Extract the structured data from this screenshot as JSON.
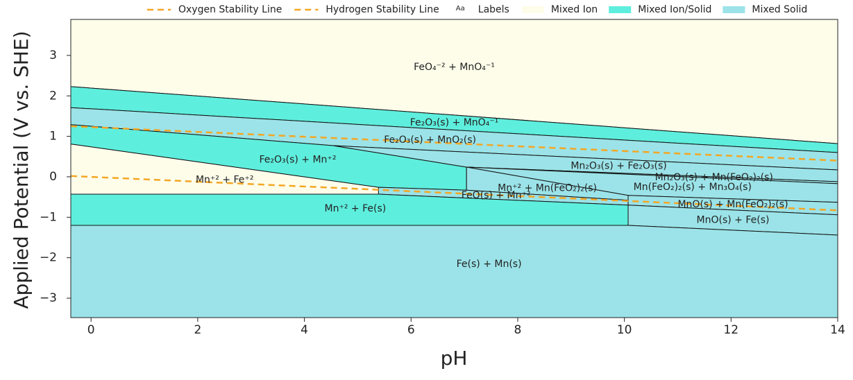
{
  "chart_data": {
    "type": "pourbaix",
    "xlabel": "pH",
    "ylabel": "Applied Potential (V vs. SHE)",
    "xlim": [
      -0.38,
      14
    ],
    "ylim": [
      -3.48,
      3.89
    ],
    "xticks": [
      0,
      2,
      4,
      6,
      8,
      10,
      12,
      14
    ],
    "yticks": [
      {
        "value": -3,
        "label": "−3"
      },
      {
        "value": -2,
        "label": "−2"
      },
      {
        "value": -1,
        "label": "−1"
      },
      0,
      1,
      2,
      3
    ],
    "lines": [
      {
        "name": "Oxygen Stability Line",
        "color": "#f5a623",
        "x": [
          -0.38,
          14
        ],
        "y": [
          1.25,
          0.4
        ]
      },
      {
        "name": "Hydrogen Stability Line",
        "color": "#f5a623",
        "x": [
          -0.38,
          14
        ],
        "y": [
          0.02,
          -0.83
        ]
      }
    ],
    "label_key": {
      "symbol": "Aa",
      "name": "Labels"
    },
    "region_kinds": [
      {
        "name": "Mixed Ion",
        "color": "#fdfdea"
      },
      {
        "name": "Mixed Ion/Solid",
        "color": "#5eeedd"
      },
      {
        "name": "Mixed Solid",
        "color": "#9be3e8"
      }
    ],
    "regions": [
      {
        "label": "FeO₄⁻² + MnO₄⁻¹",
        "kind": 0,
        "x": [
          -0.38,
          14,
          14,
          -0.38
        ],
        "y": [
          3.89,
          3.89,
          0.82,
          2.23
        ]
      },
      {
        "label": "Fe₂O₃(s) + MnO₄⁻¹",
        "kind": 1,
        "x": [
          -0.38,
          14,
          14,
          -0.38
        ],
        "y": [
          2.23,
          0.82,
          0.6,
          1.71
        ]
      },
      {
        "label": "Fe₂O₃(s) + MnO₂(s)",
        "kind": 2,
        "x": [
          -0.38,
          14,
          14,
          4.54,
          -0.38
        ],
        "y": [
          1.71,
          0.6,
          0.17,
          0.77,
          1.29
        ]
      },
      {
        "label": "Fe₂O₃(s) + Mn⁺²",
        "kind": 1,
        "x": [
          -0.38,
          4.54,
          7.04,
          7.04,
          5.39,
          -0.38
        ],
        "y": [
          1.29,
          0.77,
          0.24,
          -0.33,
          -0.26,
          0.81
        ]
      },
      {
        "label": "Mn⁺² + Fe⁺²",
        "kind": 0,
        "x": [
          -0.38,
          5.39,
          5.39,
          -0.38
        ],
        "y": [
          0.81,
          -0.26,
          -0.43,
          -0.43
        ]
      },
      {
        "label": "Mn₂O₃(s) + Fe₂O₃(s)",
        "kind": 2,
        "x": [
          4.54,
          14,
          14,
          7.04
        ],
        "y": [
          0.77,
          0.17,
          -0.12,
          0.24
        ]
      },
      {
        "label": "Mn₂O₃(s) + Mn(FeO₂)₂(s)",
        "kind": 2,
        "x": [
          7.04,
          14,
          14
        ],
        "y": [
          0.24,
          -0.12,
          -0.17
        ]
      },
      {
        "label": "Mn(FeO₂)₂(s) + Mn₃O₄(s)",
        "kind": 2,
        "x": [
          7.04,
          14,
          14,
          10.07
        ],
        "y": [
          0.24,
          -0.17,
          -0.63,
          -0.46
        ]
      },
      {
        "label": "Mn⁺² + Mn(FeO₂)₂(s)",
        "kind": 2,
        "x": [
          7.04,
          10.07,
          10.07,
          7.04
        ],
        "y": [
          0.24,
          -0.46,
          -0.58,
          -0.33
        ]
      },
      {
        "label": "FeO(s) + Mn⁺²",
        "kind": 2,
        "x": [
          5.39,
          7.04,
          10.07,
          10.07,
          5.39
        ],
        "y": [
          -0.26,
          -0.33,
          -0.58,
          -0.7,
          -0.43
        ]
      },
      {
        "label": "MnO(s) + Mn(FeO₂)₂(s)",
        "kind": 2,
        "x": [
          10.07,
          14,
          14,
          10.07
        ],
        "y": [
          -0.46,
          -0.63,
          -0.94,
          -0.7
        ]
      },
      {
        "label": "Mn⁺² + Fe(s)",
        "kind": 1,
        "x": [
          -0.38,
          5.39,
          10.07,
          10.07,
          -0.38
        ],
        "y": [
          -0.43,
          -0.43,
          -0.7,
          -1.2,
          -1.2
        ]
      },
      {
        "label": "MnO(s) + Fe(s)",
        "kind": 2,
        "x": [
          10.07,
          14,
          14,
          10.07
        ],
        "y": [
          -0.7,
          -0.94,
          -1.44,
          -1.2
        ]
      },
      {
        "label": "Fe(s) + Mn(s)",
        "kind": 2,
        "x": [
          -0.38,
          10.07,
          14,
          14,
          -0.38
        ],
        "y": [
          -1.2,
          -1.2,
          -1.44,
          -3.48,
          -3.48
        ]
      }
    ]
  }
}
